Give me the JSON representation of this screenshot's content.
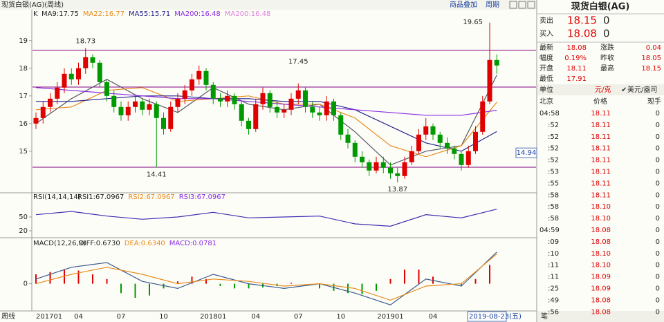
{
  "header": {
    "title": "现货白银(AG)(周线)",
    "overlay": "商品叠加",
    "period": "周期"
  },
  "chart": {
    "type": "candlestick",
    "label": "K",
    "ma_labels": [
      {
        "text": "MA9:17.75",
        "color": "#222222"
      },
      {
        "text": "MA22:16.77",
        "color": "#e88a1a"
      },
      {
        "text": "MA55:15.71",
        "color": "#23238e"
      },
      {
        "text": "MA200:16.48",
        "color": "#8a2be2"
      },
      {
        "text": "MA200:16.48",
        "color": "#e080e0"
      }
    ],
    "ylim": [
      13.67,
      20.17
    ],
    "yticks": [
      15,
      16,
      17,
      18,
      19
    ],
    "up_color": "#e00000",
    "down_color": "#009900",
    "candles": [
      [
        16.0,
        16.4,
        15.8,
        16.2
      ],
      [
        16.2,
        16.8,
        16.0,
        16.6
      ],
      [
        16.6,
        17.1,
        16.4,
        16.9
      ],
      [
        16.9,
        17.5,
        16.7,
        17.3
      ],
      [
        17.3,
        18.0,
        17.1,
        17.8
      ],
      [
        17.8,
        18.0,
        17.4,
        17.6
      ],
      [
        17.6,
        18.2,
        17.4,
        18.0
      ],
      [
        18.0,
        18.73,
        17.8,
        18.4
      ],
      [
        18.4,
        18.5,
        18.0,
        18.2
      ],
      [
        18.2,
        18.3,
        17.3,
        17.5
      ],
      [
        17.5,
        17.6,
        16.8,
        17.0
      ],
      [
        17.0,
        17.2,
        16.4,
        16.6
      ],
      [
        16.6,
        16.8,
        16.1,
        16.3
      ],
      [
        16.3,
        16.8,
        16.1,
        16.6
      ],
      [
        16.6,
        17.0,
        16.4,
        16.8
      ],
      [
        16.8,
        16.9,
        16.3,
        16.5
      ],
      [
        16.5,
        16.9,
        16.3,
        16.7
      ],
      [
        16.7,
        16.8,
        14.41,
        16.2
      ],
      [
        16.2,
        16.4,
        15.6,
        15.8
      ],
      [
        15.8,
        16.8,
        15.7,
        16.6
      ],
      [
        16.6,
        17.1,
        16.4,
        16.9
      ],
      [
        16.9,
        17.4,
        16.7,
        17.2
      ],
      [
        17.2,
        17.8,
        17.0,
        17.6
      ],
      [
        17.6,
        18.1,
        17.4,
        17.9
      ],
      [
        17.9,
        18.0,
        17.2,
        17.4
      ],
      [
        17.4,
        17.5,
        16.7,
        16.9
      ],
      [
        16.9,
        17.1,
        16.6,
        16.8
      ],
      [
        16.8,
        17.2,
        16.6,
        17.0
      ],
      [
        17.0,
        17.1,
        16.5,
        16.7
      ],
      [
        16.7,
        16.8,
        15.9,
        16.1
      ],
      [
        16.1,
        16.2,
        15.6,
        15.8
      ],
      [
        15.8,
        16.9,
        15.7,
        16.7
      ],
      [
        16.7,
        17.3,
        16.5,
        17.1
      ],
      [
        17.1,
        17.2,
        16.4,
        16.6
      ],
      [
        16.6,
        16.8,
        16.2,
        16.4
      ],
      [
        16.4,
        16.7,
        16.2,
        16.5
      ],
      [
        16.5,
        17.1,
        16.3,
        16.9
      ],
      [
        16.9,
        17.45,
        16.7,
        17.2
      ],
      [
        17.2,
        17.3,
        16.4,
        16.6
      ],
      [
        16.6,
        16.8,
        16.2,
        16.4
      ],
      [
        16.4,
        16.6,
        16.1,
        16.3
      ],
      [
        16.3,
        17.0,
        16.1,
        16.8
      ],
      [
        16.8,
        16.9,
        16.1,
        16.3
      ],
      [
        16.3,
        16.4,
        15.4,
        15.6
      ],
      [
        15.6,
        15.8,
        15.1,
        15.3
      ],
      [
        15.3,
        15.4,
        14.6,
        14.8
      ],
      [
        14.8,
        15.0,
        14.4,
        14.6
      ],
      [
        14.6,
        14.7,
        14.1,
        14.3
      ],
      [
        14.3,
        14.8,
        14.2,
        14.6
      ],
      [
        14.6,
        14.8,
        14.2,
        14.4
      ],
      [
        14.4,
        14.6,
        14.0,
        14.2
      ],
      [
        14.2,
        14.4,
        13.87,
        14.1
      ],
      [
        14.1,
        14.8,
        14.0,
        14.6
      ],
      [
        14.6,
        15.2,
        14.5,
        15.0
      ],
      [
        15.0,
        15.8,
        14.9,
        15.6
      ],
      [
        15.6,
        16.2,
        15.4,
        15.9
      ],
      [
        15.9,
        16.0,
        15.4,
        15.6
      ],
      [
        15.6,
        15.7,
        15.1,
        15.3
      ],
      [
        15.3,
        15.5,
        14.9,
        15.1
      ],
      [
        15.1,
        15.2,
        14.7,
        14.9
      ],
      [
        14.9,
        15.0,
        14.3,
        14.5
      ],
      [
        14.5,
        15.2,
        14.4,
        15.0
      ],
      [
        15.0,
        15.9,
        14.9,
        15.7
      ],
      [
        15.7,
        17.0,
        15.6,
        16.8
      ],
      [
        16.8,
        19.65,
        16.7,
        18.3
      ],
      [
        18.3,
        18.5,
        17.8,
        18.1
      ]
    ],
    "ma": [
      {
        "name": "MA9",
        "color": "#555566",
        "x": [
          0,
          5,
          10,
          15,
          20,
          25,
          30,
          35,
          40,
          45,
          50,
          55,
          60,
          65
        ],
        "values": [
          16.0,
          16.9,
          17.6,
          16.9,
          16.4,
          17.3,
          16.7,
          16.5,
          16.7,
          15.7,
          14.5,
          15.0,
          15.2,
          17.75
        ]
      },
      {
        "name": "MA22",
        "color": "#e88a1a",
        "x": [
          0,
          5,
          10,
          15,
          20,
          25,
          30,
          35,
          40,
          45,
          50,
          55,
          60,
          65
        ],
        "values": [
          16.5,
          16.6,
          17.2,
          17.3,
          16.8,
          16.9,
          17.0,
          16.7,
          16.7,
          16.2,
          15.2,
          14.8,
          15.2,
          16.77
        ]
      },
      {
        "name": "MA55",
        "color": "#23238e",
        "x": [
          0,
          5,
          10,
          15,
          20,
          25,
          30,
          35,
          40,
          45,
          50,
          55,
          60,
          65
        ],
        "values": [
          16.8,
          16.8,
          16.9,
          17.0,
          17.0,
          16.9,
          16.9,
          16.8,
          16.8,
          16.5,
          15.9,
          15.3,
          15.0,
          15.71
        ]
      },
      {
        "name": "MA200",
        "color": "#8a2be2",
        "x": [
          0,
          5,
          10,
          15,
          20,
          25,
          30,
          35,
          40,
          45,
          50,
          55,
          60,
          65
        ],
        "values": [
          17.3,
          17.2,
          17.1,
          17.0,
          16.9,
          16.9,
          16.8,
          16.7,
          16.6,
          16.5,
          16.4,
          16.3,
          16.3,
          16.48
        ]
      }
    ],
    "levels": [
      18.65,
      17.32,
      14.42
    ],
    "level_color": "#800080",
    "price_marker": 14.94,
    "x_labels": [
      {
        "text": "201701",
        "index": 0
      },
      {
        "text": "04",
        "index": 6
      },
      {
        "text": "07",
        "index": 12
      },
      {
        "text": "10",
        "index": 18
      },
      {
        "text": "201801",
        "index": 25
      },
      {
        "text": "04",
        "index": 31
      },
      {
        "text": "07",
        "index": 37
      },
      {
        "text": "10",
        "index": 43
      },
      {
        "text": "201901",
        "index": 50
      },
      {
        "text": "04",
        "index": 56
      },
      {
        "text": "07",
        "index": 62
      }
    ]
  },
  "rsi": {
    "label": "RSI(14,14,14)",
    "values_text": [
      {
        "text": "RSI1:67.0967",
        "color": "#222222"
      },
      {
        "text": "RSI2:67.0967",
        "color": "#e88a1a"
      },
      {
        "text": "RSI3:67.0967",
        "color": "#8a2be2"
      }
    ],
    "ylim": [
      8,
      98
    ],
    "yticks": [
      20,
      50
    ],
    "color": "#3b2fb0",
    "x": [
      0,
      5,
      10,
      15,
      20,
      25,
      30,
      35,
      40,
      45,
      50,
      55,
      60,
      65
    ],
    "values": [
      55,
      62,
      52,
      45,
      50,
      60,
      48,
      50,
      52,
      35,
      30,
      55,
      48,
      67
    ]
  },
  "macd": {
    "label": "MACD(12,26,9)",
    "values_text": [
      {
        "text": "DIFF:0.6730",
        "color": "#222222"
      },
      {
        "text": "DEA:0.6340",
        "color": "#e88a1a"
      },
      {
        "text": "MACD:0.0781",
        "color": "#8a2be2"
      }
    ],
    "ylim": [
      -0.55,
      0.95
    ],
    "yticks": [
      0
    ],
    "x": [
      0,
      5,
      10,
      15,
      20,
      25,
      30,
      35,
      40,
      45,
      50,
      55,
      60,
      65
    ],
    "diff": [
      0.1,
      0.35,
      0.45,
      0.05,
      -0.1,
      0.2,
      0.0,
      -0.1,
      0.0,
      -0.2,
      -0.45,
      0.1,
      -0.05,
      0.673
    ],
    "diff_color": "#3a5a8a",
    "dea": [
      0.0,
      0.2,
      0.35,
      0.2,
      0.0,
      0.1,
      0.05,
      -0.05,
      0.0,
      -0.1,
      -0.35,
      -0.05,
      0.0,
      0.634
    ],
    "dea_color": "#e88a1a",
    "hist_x": [
      0,
      2,
      4,
      6,
      8,
      10,
      12,
      14,
      16,
      18,
      20,
      22,
      24,
      26,
      28,
      30,
      32,
      34,
      36,
      38,
      40,
      42,
      44,
      46,
      48,
      50,
      52,
      54,
      56,
      58,
      60,
      62,
      64
    ],
    "hist": [
      0.2,
      0.25,
      0.3,
      0.28,
      0.2,
      0.1,
      -0.2,
      -0.3,
      -0.25,
      -0.1,
      0.05,
      0.15,
      0.1,
      -0.05,
      -0.1,
      -0.1,
      -0.08,
      -0.05,
      0.02,
      0.0,
      -0.1,
      -0.15,
      -0.2,
      -0.22,
      -0.15,
      0.1,
      0.3,
      0.3,
      0.15,
      0.0,
      -0.05,
      0.1,
      0.4
    ]
  },
  "footer": {
    "period": "周线",
    "date": "2019-08-23(五)",
    "pen": "笔"
  },
  "quote": {
    "title": "现货白银(AG)",
    "bidask": [
      [
        "卖出",
        "18.15",
        "0"
      ],
      [
        "买入",
        "18.08",
        "0"
      ]
    ],
    "table": [
      [
        "最新",
        "18.08",
        "涨跌",
        "0.04"
      ],
      [
        "幅度",
        "0.19%",
        "昨收",
        "18.05"
      ],
      [
        "开盘",
        "18.11",
        "最高",
        "18.15"
      ],
      [
        "最低",
        "17.91"
      ]
    ],
    "unit": [
      "单位",
      "元/克",
      "美元/盎司"
    ]
  },
  "ticks": {
    "header": [
      "北京",
      "价格",
      "现手"
    ],
    "rows": [
      [
        "04:58",
        "18.11",
        "0"
      ],
      [
        ":52",
        "18.11",
        "0"
      ],
      [
        ":52",
        "18.11",
        "0"
      ],
      [
        ":52",
        "18.11",
        "0"
      ],
      [
        ":52",
        "18.11",
        "0"
      ],
      [
        ":53",
        "18.11",
        "0"
      ],
      [
        ":55",
        "18.11",
        "0"
      ],
      [
        ":58",
        "18.11",
        "0"
      ],
      [
        ":58",
        "18.10",
        "0"
      ],
      [
        ":58",
        "18.10",
        "0"
      ],
      [
        "04:59",
        "18.08",
        "0"
      ],
      [
        ":09",
        "18.08",
        "0"
      ],
      [
        ":10",
        "18.10",
        "0"
      ],
      [
        ":11",
        "18.10",
        "0"
      ],
      [
        ":11",
        "18.09",
        "0"
      ],
      [
        ":25",
        "18.09",
        "0"
      ],
      [
        ":49",
        "18.08",
        "0"
      ],
      [
        ":56",
        "18.08",
        "0"
      ]
    ]
  }
}
